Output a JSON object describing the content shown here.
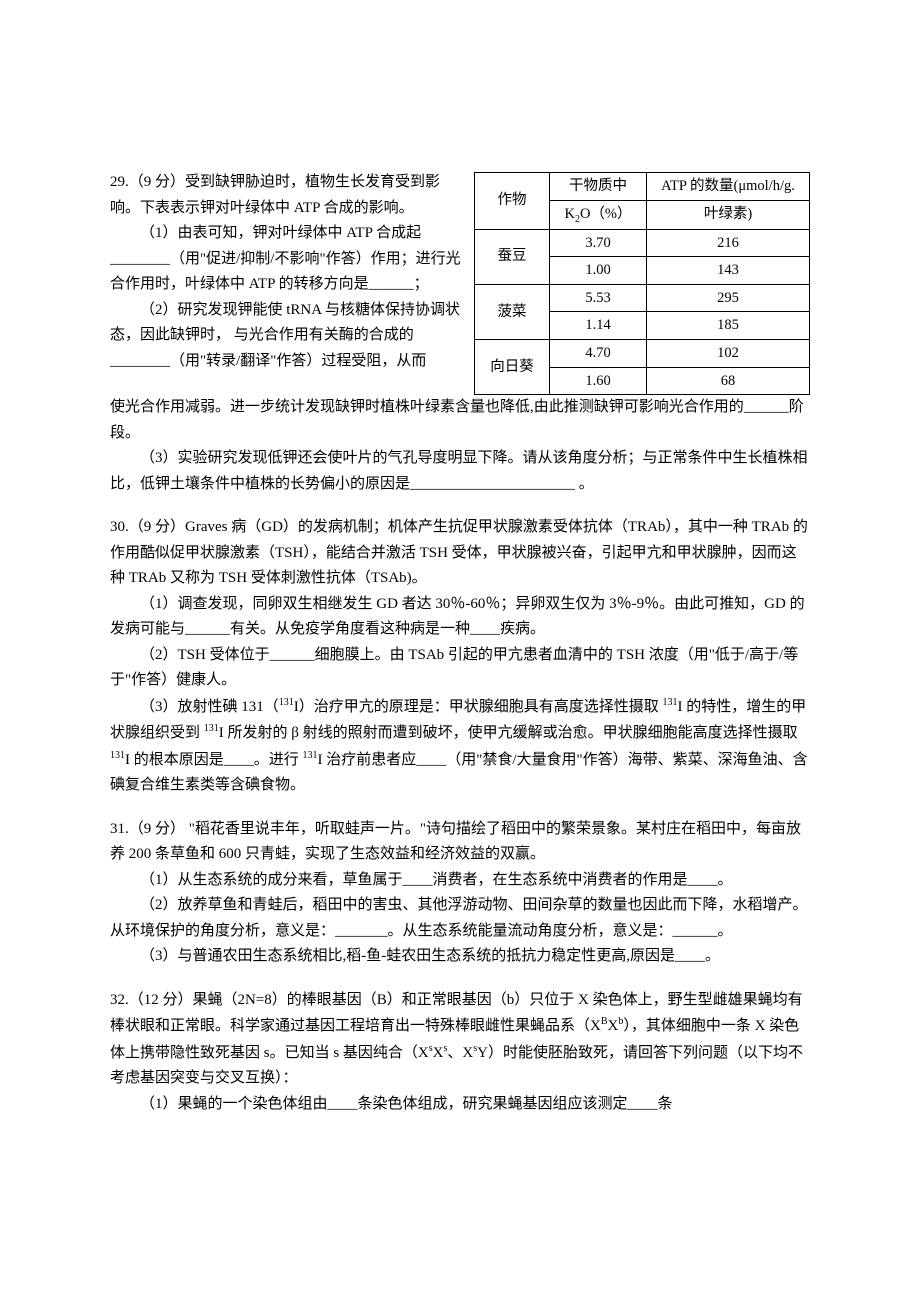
{
  "q29": {
    "header": "29.（9 分）受到缺钾胁迫时，植物生长发育受到影响。下表表示钾对叶绿体中 ATP 合成的影响。",
    "p1a": "（1）由表可知，钾对叶绿体中 ATP 合成起________（用\"促进/抑制/不影响\"作答）作用；进行光合作用时，叶绿体中 ATP 的转移方向是______；",
    "p2a": "（2）研究发现钾能使 tRNA 与核糖体保持协调状态，因此缺钾时，  与光合作用有关酶的合成的________（用\"转录/翻译\"作答）过程受阻，从而",
    "p2b": "使光合作用减弱。进一步统计发现缺钾时植株叶绿素含量也降低,由此推测缺钾可影响光合作用的______阶段。",
    "p3": "（3）实验研究发现低钾还会使叶片的气孔导度明显下降。请从该角度分析；与正常条件中生长植株相比，低钾土壤条件中植株的长势偏小的原因是______________________ 。",
    "table": {
      "header": {
        "crop": "作物",
        "k2o_l1": "干物质中",
        "k2o_l2": "K₂O（%）",
        "atp_l1": "ATP 的数量(μmol/h/g.",
        "atp_l2": "叶绿素)"
      },
      "rows": [
        {
          "crop": "蚕豆",
          "k2o_a": "3.70",
          "atp_a": "216",
          "k2o_b": "1.00",
          "atp_b": "143"
        },
        {
          "crop": "菠菜",
          "k2o_a": "5.53",
          "atp_a": "295",
          "k2o_b": "1.14",
          "atp_b": "185"
        },
        {
          "crop": "向日葵",
          "k2o_a": "4.70",
          "atp_a": "102",
          "k2o_b": "1.60",
          "atp_b": "68"
        }
      ]
    }
  },
  "q30": {
    "header": "30.（9 分）Graves 病（GD）的发病机制；机体产生抗促甲状腺激素受体抗体（TRAb），其中一种 TRAb 的作用酷似促甲状腺激素（TSH），能结合并激活 TSH 受体，甲状腺被兴奋，引起甲亢和甲状腺肿，因而这种 TRAb 又称为 TSH 受体刺激性抗体（TSAb)。",
    "p1": "（1）调查发现，同卵双生相继发生 GD 者达 30％-60％；异卵双生仅为 3％-9％。由此可推知，GD 的发病可能与______有关。从免疫学角度看这种病是一种____疾病。",
    "p2": "（2）TSH 受体位于______细胞膜上。由 TSAb 引起的甲亢患者血清中的 TSH 浓度（用\"低于/高于/等于\"作答）健康人。",
    "p3": "（3）放射性碘 131（¹³¹I）治疗甲亢的原理是：甲状腺细胞具有高度选择性摄取 ¹³¹I 的特性，增生的甲状腺组织受到 ¹³¹I 所发射的 β 射线的照射而遭到破坏，使甲亢缓解或治愈。甲状腺细胞能高度选择性摄取 ¹³¹I 的根本原因是____。进行 ¹³¹I 治疗前患者应____（用\"禁食/大量食用\"作答）海带、紫菜、深海鱼油、含碘复合维生素类等含碘食物。"
  },
  "q31": {
    "header": "31.（9 分） \"稻花香里说丰年，听取蛙声一片。\"诗句描绘了稻田中的繁荣景象。某村庄在稻田中，每亩放养 200 条草鱼和 600 只青蛙，实现了生态效益和经济效益的双赢。",
    "p1": "（1）从生态系统的成分来看，草鱼属于____消费者，在生态系统中消费者的作用是____。",
    "p2": "（2）放养草鱼和青蛙后，稻田中的害虫、其他浮游动物、田间杂草的数量也因此而下降，水稻增产。从环境保护的角度分析，意义是：_______。从生态系统能量流动角度分析，意义是：______。",
    "p3": "（3）与普通农田生态系统相比,稻-鱼-蛙农田生态系统的抵抗力稳定性更高,原因是____。"
  },
  "q32": {
    "header": "32.（12 分）果蝇（2N=8）的棒眼基因（B）和正常眼基因（b）只位于 X 染色体上，野生型雌雄果蝇均有棒状眼和正常眼。科学家通过基因工程培育出一特殊棒眼雌性果蝇品系（XᴮXᵇ），其体细胞中一条 X 染色体上携带隐性致死基因 s。已知当 s 基因纯合（XˢXˢ、XˢY）时能使胚胎致死，请回答下列问题（以下均不考虑基因突变与交叉互换）：",
    "p1": "（1）果蝇的一个染色体组由____条染色体组成，研究果蝇基因组应该测定____条"
  }
}
